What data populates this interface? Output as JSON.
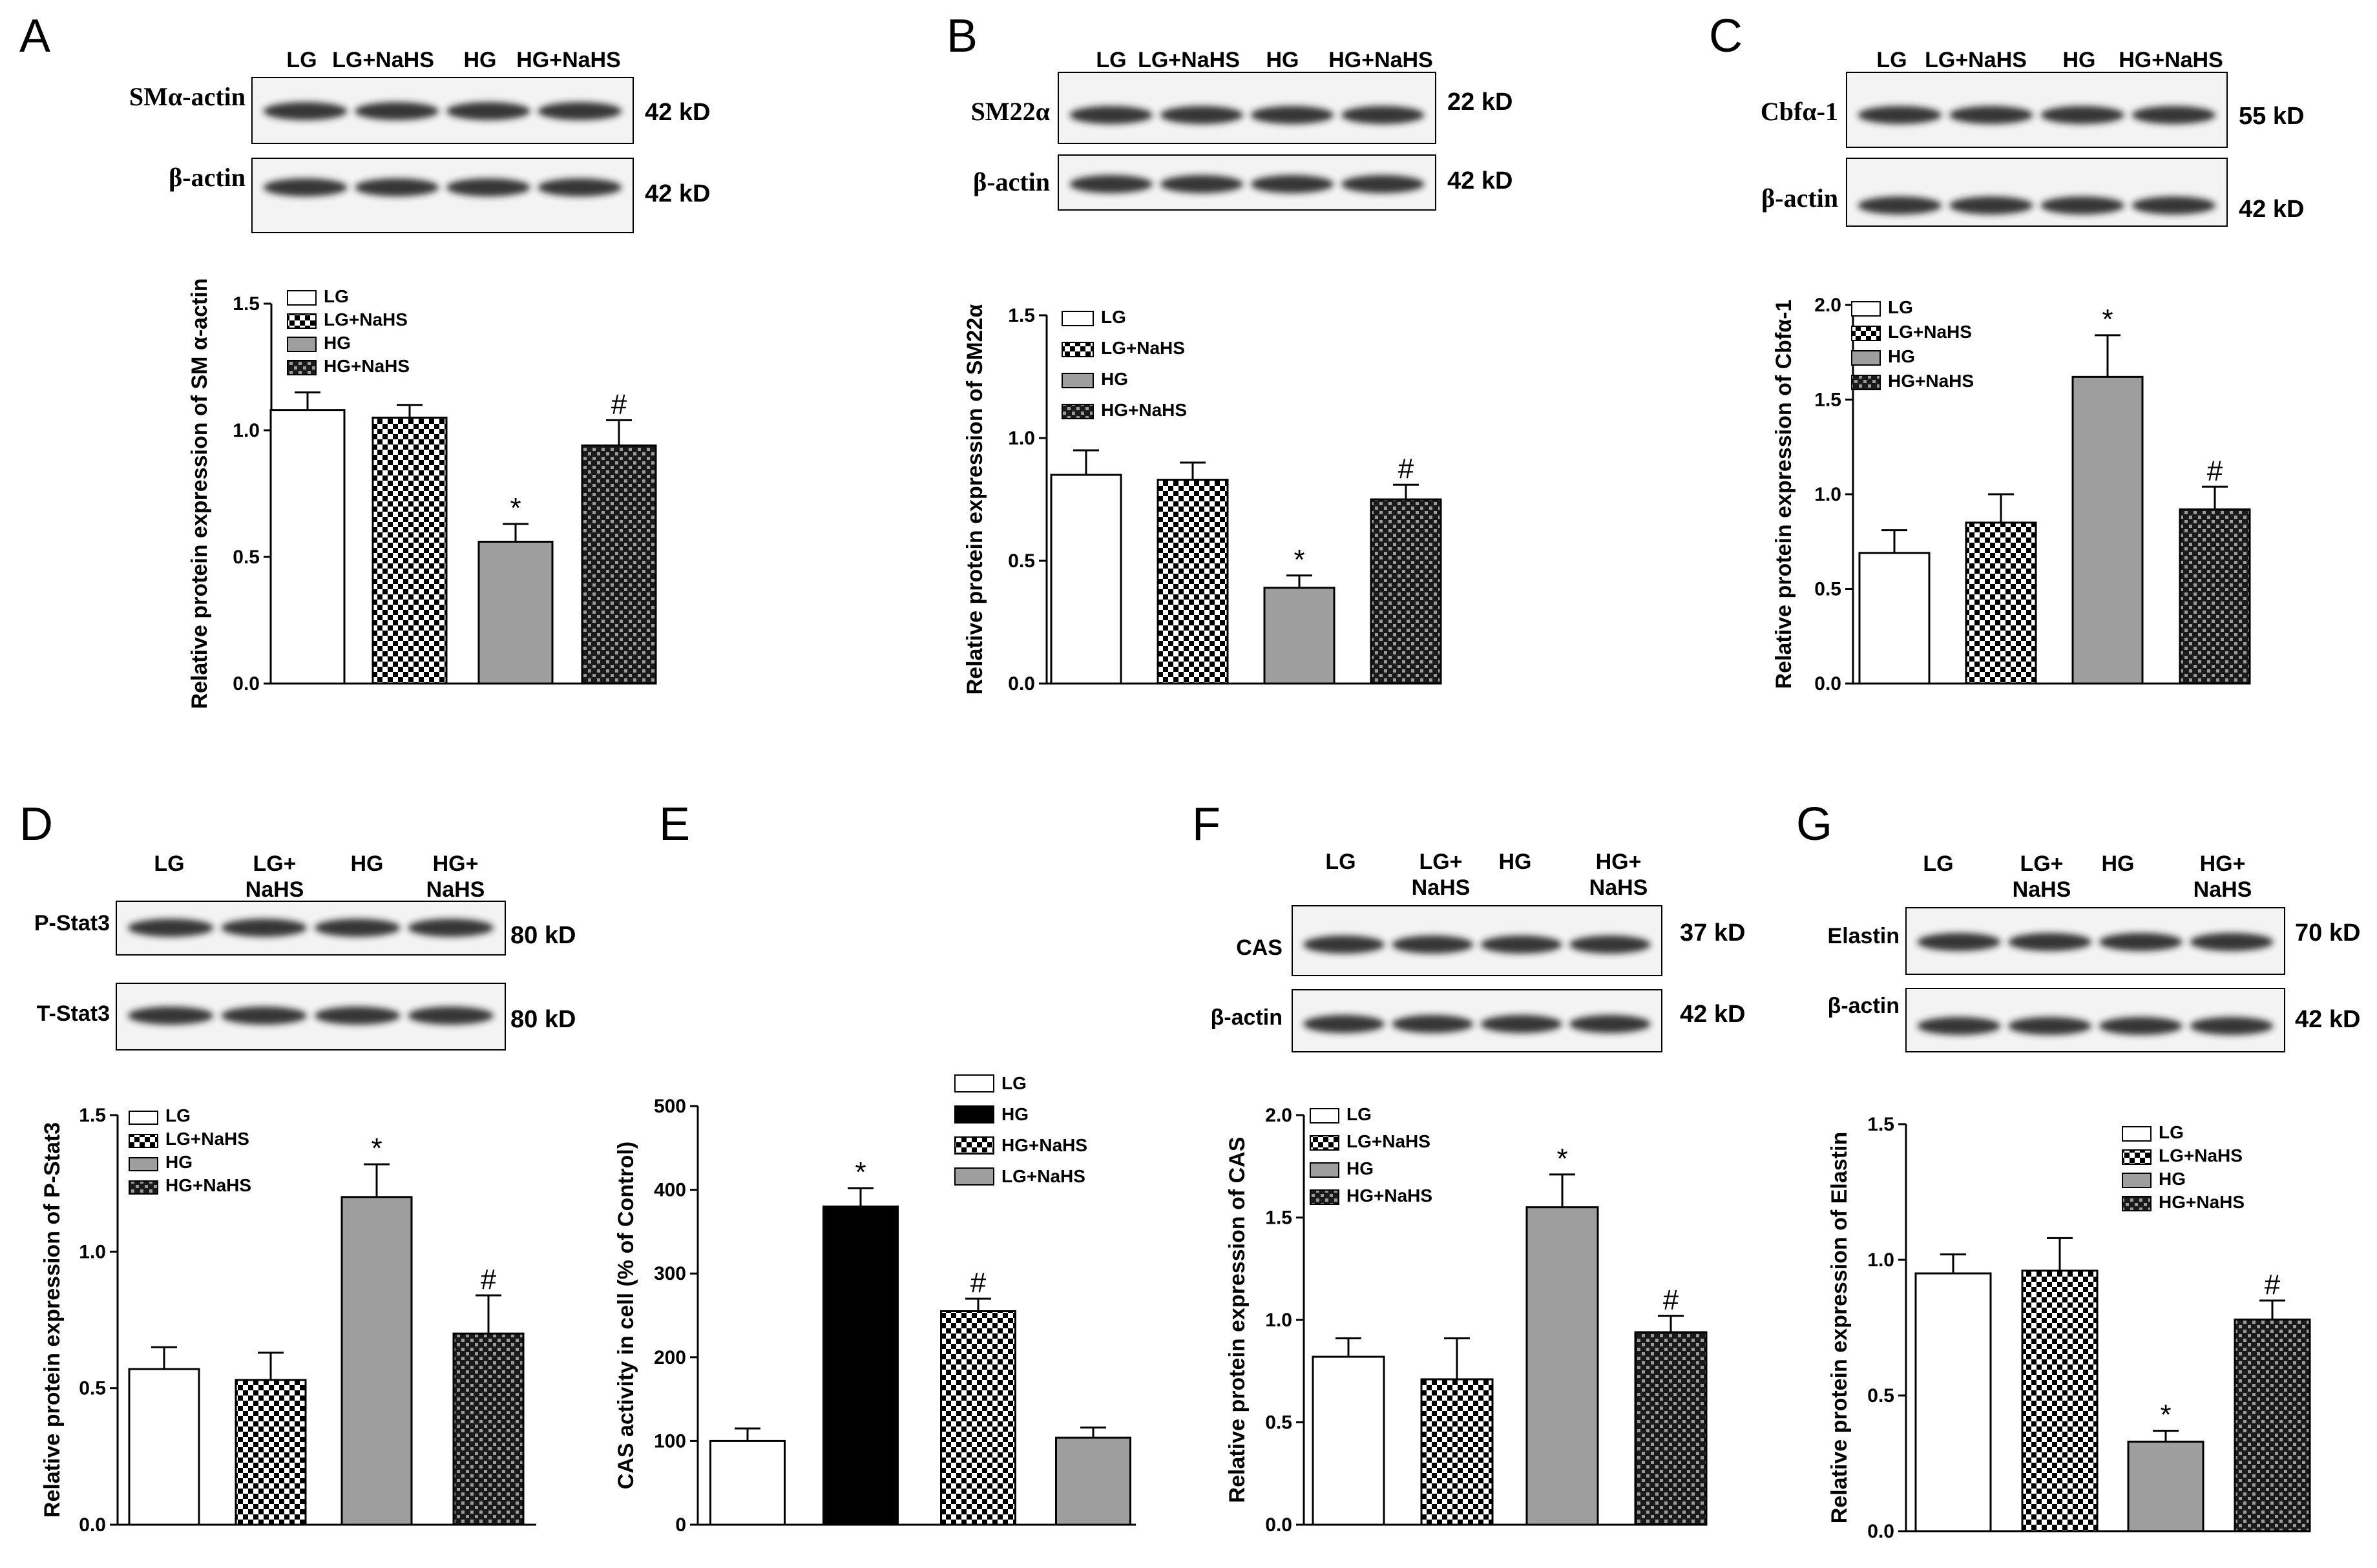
{
  "colors": {
    "white": "#ffffff",
    "black": "#000000",
    "gray": "#9e9e9e",
    "band": "#222222"
  },
  "chart_data": [
    {
      "panel": "A",
      "type": "bar",
      "blot": {
        "lanes": [
          "LG",
          "LG+NaHS",
          "HG",
          "HG+NaHS"
        ],
        "rows": [
          {
            "protein": "SMα-actin",
            "kd": "42 kD"
          },
          {
            "protein": "β-actin",
            "kd": "42 kD"
          }
        ]
      },
      "ylabel": "Relative protein expression of SM α-actin",
      "ylim": [
        0,
        1.5
      ],
      "yticks": [
        "0.0",
        "0.5",
        "1.0",
        "1.5"
      ],
      "legend": [
        "LG",
        "LG+NaHS",
        "HG",
        "HG+NaHS"
      ],
      "bars": [
        {
          "name": "LG",
          "value": 1.08,
          "err": 0.07,
          "fill": "white",
          "mark": ""
        },
        {
          "name": "LG+NaHS",
          "value": 1.05,
          "err": 0.05,
          "fill": "check",
          "mark": ""
        },
        {
          "name": "HG",
          "value": 0.56,
          "err": 0.07,
          "fill": "gray",
          "mark": "*"
        },
        {
          "name": "HG+NaHS",
          "value": 0.94,
          "err": 0.1,
          "fill": "dark",
          "mark": "#"
        }
      ]
    },
    {
      "panel": "B",
      "type": "bar",
      "blot": {
        "lanes": [
          "LG",
          "LG+NaHS",
          "HG",
          "HG+NaHS"
        ],
        "rows": [
          {
            "protein": "SM22α",
            "kd": "22 kD"
          },
          {
            "protein": "β-actin",
            "kd": "42 kD"
          }
        ]
      },
      "ylabel": "Relative protein expression of SM22α",
      "ylim": [
        0,
        1.5
      ],
      "yticks": [
        "0.0",
        "0.5",
        "1.0",
        "1.5"
      ],
      "legend": [
        "LG",
        "LG+NaHS",
        "HG",
        "HG+NaHS"
      ],
      "bars": [
        {
          "name": "LG",
          "value": 0.85,
          "err": 0.1,
          "fill": "white",
          "mark": ""
        },
        {
          "name": "LG+NaHS",
          "value": 0.83,
          "err": 0.07,
          "fill": "check",
          "mark": ""
        },
        {
          "name": "HG",
          "value": 0.39,
          "err": 0.05,
          "fill": "gray",
          "mark": "*"
        },
        {
          "name": "HG+NaHS",
          "value": 0.75,
          "err": 0.06,
          "fill": "dark",
          "mark": "#"
        }
      ]
    },
    {
      "panel": "C",
      "type": "bar",
      "blot": {
        "lanes": [
          "LG",
          "LG+NaHS",
          "HG",
          "HG+NaHS"
        ],
        "rows": [
          {
            "protein": "Cbfα-1",
            "kd": "55 kD"
          },
          {
            "protein": "β-actin",
            "kd": "42 kD"
          }
        ]
      },
      "ylabel": "Relative protein expression of Cbfα-1",
      "ylim": [
        0,
        2.0
      ],
      "yticks": [
        "0.0",
        "0.5",
        "1.0",
        "1.5",
        "2.0"
      ],
      "legend": [
        "LG",
        "LG+NaHS",
        "HG",
        "HG+NaHS"
      ],
      "bars": [
        {
          "name": "LG",
          "value": 0.69,
          "err": 0.12,
          "fill": "white",
          "mark": ""
        },
        {
          "name": "LG+NaHS",
          "value": 0.85,
          "err": 0.15,
          "fill": "check",
          "mark": ""
        },
        {
          "name": "HG",
          "value": 1.62,
          "err": 0.22,
          "fill": "gray",
          "mark": "*"
        },
        {
          "name": "HG+NaHS",
          "value": 0.92,
          "err": 0.12,
          "fill": "dark",
          "mark": "#"
        }
      ]
    },
    {
      "panel": "D",
      "type": "bar",
      "blot": {
        "lanes": [
          "LG",
          "LG+\nNaHS",
          "HG",
          "HG+\nNaHS"
        ],
        "rows": [
          {
            "protein": "P-Stat3",
            "kd": "80 kD"
          },
          {
            "protein": "T-Stat3",
            "kd": "80 kD"
          }
        ]
      },
      "ylabel": "Relative protein expression of P-Stat3",
      "ylim": [
        0,
        1.5
      ],
      "yticks": [
        "0.0",
        "0.5",
        "1.0",
        "1.5"
      ],
      "legend": [
        "LG",
        "LG+NaHS",
        "HG",
        "HG+NaHS"
      ],
      "bars": [
        {
          "name": "LG",
          "value": 0.57,
          "err": 0.08,
          "fill": "white",
          "mark": ""
        },
        {
          "name": "LG+NaHS",
          "value": 0.53,
          "err": 0.1,
          "fill": "check",
          "mark": ""
        },
        {
          "name": "HG",
          "value": 1.2,
          "err": 0.12,
          "fill": "gray",
          "mark": "*"
        },
        {
          "name": "HG+NaHS",
          "value": 0.7,
          "err": 0.14,
          "fill": "dark",
          "mark": "#"
        }
      ]
    },
    {
      "panel": "E",
      "type": "bar",
      "blot": null,
      "ylabel": "CAS activity in cell (% of Control)",
      "ylim": [
        0,
        500
      ],
      "yticks": [
        "0",
        "100",
        "200",
        "300",
        "400",
        "500"
      ],
      "legend": [
        "LG",
        "HG",
        "HG+NaHS",
        "LG+NaHS"
      ],
      "bars": [
        {
          "name": "LG",
          "value": 100,
          "err": 15,
          "fill": "white",
          "mark": ""
        },
        {
          "name": "HG",
          "value": 380,
          "err": 22,
          "fill": "black",
          "mark": "*"
        },
        {
          "name": "HG+NaHS",
          "value": 255,
          "err": 15,
          "fill": "check",
          "mark": "#"
        },
        {
          "name": "LG+NaHS",
          "value": 104,
          "err": 12,
          "fill": "gray",
          "mark": ""
        }
      ]
    },
    {
      "panel": "F",
      "type": "bar",
      "blot": {
        "lanes": [
          "LG",
          "LG+\nNaHS",
          "HG",
          "HG+\nNaHS"
        ],
        "rows": [
          {
            "protein": "CAS",
            "kd": "37 kD"
          },
          {
            "protein": "β-actin",
            "kd": "42 kD"
          }
        ]
      },
      "ylabel": "Relative protein expression of CAS",
      "ylim": [
        0,
        2.0
      ],
      "yticks": [
        "0.0",
        "0.5",
        "1.0",
        "1.5",
        "2.0"
      ],
      "legend": [
        "LG",
        "LG+NaHS",
        "HG",
        "HG+NaHS"
      ],
      "bars": [
        {
          "name": "LG",
          "value": 0.82,
          "err": 0.09,
          "fill": "white",
          "mark": ""
        },
        {
          "name": "LG+NaHS",
          "value": 0.71,
          "err": 0.2,
          "fill": "check",
          "mark": ""
        },
        {
          "name": "HG",
          "value": 1.55,
          "err": 0.16,
          "fill": "gray",
          "mark": "*"
        },
        {
          "name": "HG+NaHS",
          "value": 0.94,
          "err": 0.08,
          "fill": "dark",
          "mark": "#"
        }
      ]
    },
    {
      "panel": "G",
      "type": "bar",
      "blot": {
        "lanes": [
          "LG",
          "LG+\nNaHS",
          "HG",
          "HG+\nNaHS"
        ],
        "rows": [
          {
            "protein": "Elastin",
            "kd": "70 kD"
          },
          {
            "protein": "β-actin",
            "kd": "42 kD"
          }
        ]
      },
      "ylabel": "Relative protein expression of Elastin",
      "ylim": [
        0,
        1.5
      ],
      "yticks": [
        "0.0",
        "0.5",
        "1.0",
        "1.5"
      ],
      "legend": [
        "LG",
        "LG+NaHS",
        "HG",
        "HG+NaHS"
      ],
      "bars": [
        {
          "name": "LG",
          "value": 0.95,
          "err": 0.07,
          "fill": "white",
          "mark": ""
        },
        {
          "name": "LG+NaHS",
          "value": 0.96,
          "err": 0.12,
          "fill": "check",
          "mark": ""
        },
        {
          "name": "HG",
          "value": 0.33,
          "err": 0.04,
          "fill": "gray",
          "mark": "*"
        },
        {
          "name": "HG+NaHS",
          "value": 0.78,
          "err": 0.07,
          "fill": "dark",
          "mark": "#"
        }
      ]
    }
  ]
}
